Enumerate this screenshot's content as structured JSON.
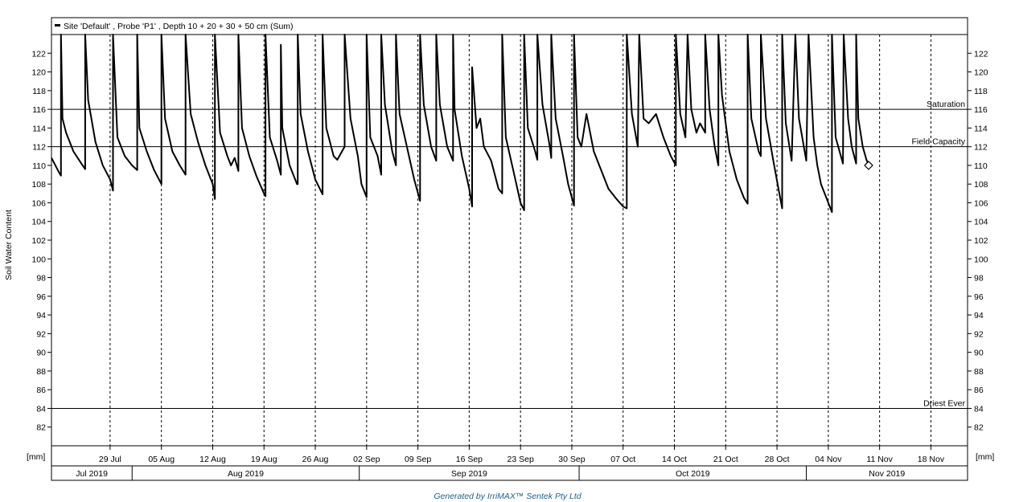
{
  "chart_data": {
    "type": "line",
    "legend": "Site 'Default' , Probe 'P1' , Depth 10 + 20 + 30 + 50 cm (Sum)",
    "ylabel": "Soil Water Content",
    "unit_label": "[mm]",
    "ylim": [
      80,
      124
    ],
    "yticks": [
      82,
      84,
      86,
      88,
      90,
      92,
      94,
      96,
      98,
      100,
      102,
      104,
      106,
      108,
      110,
      112,
      114,
      116,
      118,
      120,
      122
    ],
    "xlim": [
      "2019-07-21",
      "2019-11-23"
    ],
    "date_ticks": [
      {
        "date": "2019-07-29",
        "label": "29 Jul"
      },
      {
        "date": "2019-08-05",
        "label": "05 Aug"
      },
      {
        "date": "2019-08-12",
        "label": "12 Aug"
      },
      {
        "date": "2019-08-19",
        "label": "19 Aug"
      },
      {
        "date": "2019-08-26",
        "label": "26 Aug"
      },
      {
        "date": "2019-09-02",
        "label": "02 Sep"
      },
      {
        "date": "2019-09-09",
        "label": "09 Sep"
      },
      {
        "date": "2019-09-16",
        "label": "16 Sep"
      },
      {
        "date": "2019-09-23",
        "label": "23 Sep"
      },
      {
        "date": "2019-09-30",
        "label": "30 Sep"
      },
      {
        "date": "2019-10-07",
        "label": "07 Oct"
      },
      {
        "date": "2019-10-14",
        "label": "14 Oct"
      },
      {
        "date": "2019-10-21",
        "label": "21 Oct"
      },
      {
        "date": "2019-10-28",
        "label": "28 Oct"
      },
      {
        "date": "2019-11-04",
        "label": "04 Nov"
      },
      {
        "date": "2019-11-11",
        "label": "11 Nov"
      },
      {
        "date": "2019-11-18",
        "label": "18 Nov"
      }
    ],
    "months": [
      {
        "label": "Jul 2019",
        "start": "2019-07-21",
        "end": "2019-08-01"
      },
      {
        "label": "Aug 2019",
        "start": "2019-08-01",
        "end": "2019-09-01"
      },
      {
        "label": "Sep 2019",
        "start": "2019-09-01",
        "end": "2019-10-01"
      },
      {
        "label": "Oct 2019",
        "start": "2019-10-01",
        "end": "2019-11-01"
      },
      {
        "label": "Nov 2019",
        "start": "2019-11-01",
        "end": "2019-11-23"
      }
    ],
    "reference_lines": [
      {
        "label": "Saturation",
        "value": 116
      },
      {
        "label": "Field Capacity",
        "value": 112
      },
      {
        "label": "Driest Ever",
        "value": 84
      }
    ],
    "series": [
      {
        "color": "#000000",
        "points": [
          [
            "2019-07-21",
            110.8
          ],
          [
            "2019-07-22",
            109.3
          ],
          [
            "2019-07-22.3",
            108.9
          ],
          [
            "2019-07-22.3",
            124
          ],
          [
            "2019-07-22.5",
            115.0
          ],
          [
            "2019-07-23",
            113.5
          ],
          [
            "2019-07-24",
            111.5
          ],
          [
            "2019-07-25",
            110.3
          ],
          [
            "2019-07-25.6",
            109.6
          ],
          [
            "2019-07-25.6",
            124
          ],
          [
            "2019-07-26",
            117.0
          ],
          [
            "2019-07-27",
            112.5
          ],
          [
            "2019-07-28",
            110.0
          ],
          [
            "2019-07-29",
            108.5
          ],
          [
            "2019-07-29.4",
            107.3
          ],
          [
            "2019-07-29.4",
            124
          ],
          [
            "2019-07-30",
            113.0
          ],
          [
            "2019-07-31",
            111.0
          ],
          [
            "2019-08-01",
            110.0
          ],
          [
            "2019-08-01.7",
            109.5
          ],
          [
            "2019-08-01.7",
            124
          ],
          [
            "2019-08-02",
            114.0
          ],
          [
            "2019-08-03",
            111.5
          ],
          [
            "2019-08-04",
            109.5
          ],
          [
            "2019-08-05",
            108.0
          ],
          [
            "2019-08-05",
            124
          ],
          [
            "2019-08-05.5",
            115.0
          ],
          [
            "2019-08-06.5",
            111.5
          ],
          [
            "2019-08-07.5",
            110.0
          ],
          [
            "2019-08-08.3",
            109.0
          ],
          [
            "2019-08-08.3",
            124
          ],
          [
            "2019-08-09",
            115.5
          ],
          [
            "2019-08-10",
            112.5
          ],
          [
            "2019-08-11",
            110.0
          ],
          [
            "2019-08-12",
            108.0
          ],
          [
            "2019-08-12.3",
            106.4
          ],
          [
            "2019-08-12.3",
            124
          ],
          [
            "2019-08-13",
            113.5
          ],
          [
            "2019-08-14",
            111.0
          ],
          [
            "2019-08-14.5",
            110.0
          ],
          [
            "2019-08-15",
            110.8
          ],
          [
            "2019-08-15.5",
            109.4
          ],
          [
            "2019-08-15.5",
            124
          ],
          [
            "2019-08-16",
            114.0
          ],
          [
            "2019-08-17",
            111.0
          ],
          [
            "2019-08-18",
            108.8
          ],
          [
            "2019-08-19",
            107.0
          ],
          [
            "2019-08-19.2",
            106.7
          ],
          [
            "2019-08-19.2",
            124
          ],
          [
            "2019-08-19.8",
            113.0
          ],
          [
            "2019-08-20.8",
            110.5
          ],
          [
            "2019-08-21.3",
            109.0
          ],
          [
            "2019-08-21.3",
            122.9
          ],
          [
            "2019-08-21.5",
            114.0
          ],
          [
            "2019-08-22.5",
            110.0
          ],
          [
            "2019-08-23.5",
            108.0
          ],
          [
            "2019-08-23.6",
            108.0
          ],
          [
            "2019-08-23.6",
            124
          ],
          [
            "2019-08-24",
            115.5
          ],
          [
            "2019-08-25",
            111.5
          ],
          [
            "2019-08-26",
            108.5
          ],
          [
            "2019-08-27",
            106.9
          ],
          [
            "2019-08-27",
            124
          ],
          [
            "2019-08-27.5",
            114.0
          ],
          [
            "2019-08-28.5",
            111.0
          ],
          [
            "2019-08-29",
            110.6
          ],
          [
            "2019-08-30",
            112.0
          ],
          [
            "2019-08-30",
            124
          ],
          [
            "2019-08-30.8",
            115.0
          ],
          [
            "2019-08-31.8",
            111.0
          ],
          [
            "2019-09-01.3",
            108.0
          ],
          [
            "2019-09-02",
            106.6
          ],
          [
            "2019-09-02",
            124
          ],
          [
            "2019-09-02.5",
            113.0
          ],
          [
            "2019-09-03.5",
            111.0
          ],
          [
            "2019-09-04",
            109.0
          ],
          [
            "2019-09-04",
            124
          ],
          [
            "2019-09-04.5",
            116.5
          ],
          [
            "2019-09-05.5",
            111.5
          ],
          [
            "2019-09-06",
            110.0
          ],
          [
            "2019-09-06",
            124
          ],
          [
            "2019-09-06.5",
            115.5
          ],
          [
            "2019-09-07.5",
            112.0
          ],
          [
            "2019-09-08.5",
            108.5
          ],
          [
            "2019-09-09.3",
            106.2
          ],
          [
            "2019-09-09.3",
            124
          ],
          [
            "2019-09-09.8",
            116.5
          ],
          [
            "2019-09-10.8",
            112.0
          ],
          [
            "2019-09-11.5",
            110.5
          ],
          [
            "2019-09-11.5",
            124
          ],
          [
            "2019-09-12",
            116.5
          ],
          [
            "2019-09-13",
            112.0
          ],
          [
            "2019-09-13.8",
            110.5
          ],
          [
            "2019-09-13.8",
            124
          ],
          [
            "2019-09-14",
            116.0
          ],
          [
            "2019-09-15",
            111.0
          ],
          [
            "2019-09-16",
            107.5
          ],
          [
            "2019-09-16.4",
            105.6
          ],
          [
            "2019-09-16.4",
            120.5
          ],
          [
            "2019-09-17",
            114.0
          ],
          [
            "2019-09-17.5",
            115.0
          ],
          [
            "2019-09-18",
            112.0
          ],
          [
            "2019-09-19",
            110.5
          ],
          [
            "2019-09-20",
            107.5
          ],
          [
            "2019-09-20.5",
            107.0
          ],
          [
            "2019-09-20.5",
            124
          ],
          [
            "2019-09-21",
            113.0
          ],
          [
            "2019-09-22",
            109.5
          ],
          [
            "2019-09-23",
            106.0
          ],
          [
            "2019-09-23.5",
            105.2
          ],
          [
            "2019-09-23.5",
            124
          ],
          [
            "2019-09-24",
            114.0
          ],
          [
            "2019-09-25",
            111.5
          ],
          [
            "2019-09-25.3",
            110.6
          ],
          [
            "2019-09-25.3",
            124
          ],
          [
            "2019-09-26",
            116.5
          ],
          [
            "2019-09-27",
            112.0
          ],
          [
            "2019-09-27.2",
            110.8
          ],
          [
            "2019-09-27.2",
            124
          ],
          [
            "2019-09-27.8",
            115.0
          ],
          [
            "2019-09-28.8",
            111.0
          ],
          [
            "2019-09-29.5",
            108.0
          ],
          [
            "2019-09-30.3",
            105.7
          ],
          [
            "2019-09-30.3",
            124
          ],
          [
            "2019-09-30.8",
            113.0
          ],
          [
            "2019-10-01.3",
            112.0
          ],
          [
            "2019-10-02",
            115.5
          ],
          [
            "2019-10-03",
            111.5
          ],
          [
            "2019-10-04",
            109.5
          ],
          [
            "2019-10-05",
            107.5
          ],
          [
            "2019-10-06",
            106.5
          ],
          [
            "2019-10-07",
            105.6
          ],
          [
            "2019-10-07.5",
            105.4
          ],
          [
            "2019-10-07.5",
            124
          ],
          [
            "2019-10-08.2",
            115.5
          ],
          [
            "2019-10-09",
            112.0
          ],
          [
            "2019-10-09.2",
            124
          ],
          [
            "2019-10-09.8",
            115.0
          ],
          [
            "2019-10-10.5",
            114.5
          ],
          [
            "2019-10-11.5",
            115.5
          ],
          [
            "2019-10-12.5",
            113.0
          ],
          [
            "2019-10-13.5",
            111.0
          ],
          [
            "2019-10-14.2",
            110.0
          ],
          [
            "2019-10-14.2",
            124
          ],
          [
            "2019-10-14.8",
            115.5
          ],
          [
            "2019-10-15.5",
            113.0
          ],
          [
            "2019-10-15.8",
            124
          ],
          [
            "2019-10-16.3",
            116.0
          ],
          [
            "2019-10-17",
            113.5
          ],
          [
            "2019-10-17.5",
            114.5
          ],
          [
            "2019-10-18.2",
            113.5
          ],
          [
            "2019-10-18.2",
            124
          ],
          [
            "2019-10-18.8",
            116.0
          ],
          [
            "2019-10-19.5",
            112.0
          ],
          [
            "2019-10-20",
            110.0
          ],
          [
            "2019-10-20",
            124
          ],
          [
            "2019-10-20.5",
            117.5
          ],
          [
            "2019-10-21.5",
            111.5
          ],
          [
            "2019-10-22.5",
            108.5
          ],
          [
            "2019-10-23.5",
            106.5
          ],
          [
            "2019-10-24",
            105.9
          ],
          [
            "2019-10-24",
            124
          ],
          [
            "2019-10-24.5",
            115.0
          ],
          [
            "2019-10-25.5",
            111.5
          ],
          [
            "2019-10-25.8",
            111.0
          ],
          [
            "2019-10-25.8",
            124
          ],
          [
            "2019-10-26.5",
            115.0
          ],
          [
            "2019-10-27.5",
            110.5
          ],
          [
            "2019-10-28.2",
            107.5
          ],
          [
            "2019-10-28.7",
            105.4
          ],
          [
            "2019-10-28.7",
            124
          ],
          [
            "2019-10-29.2",
            114.5
          ],
          [
            "2019-10-30",
            110.5
          ],
          [
            "2019-10-30.5",
            124
          ],
          [
            "2019-10-31",
            115.0
          ],
          [
            "2019-11-01",
            110.5
          ],
          [
            "2019-11-01.3",
            124
          ],
          [
            "2019-11-02",
            113.0
          ],
          [
            "2019-11-02.5",
            110.0
          ],
          [
            "2019-11-03",
            108.0
          ],
          [
            "2019-11-04",
            106.0
          ],
          [
            "2019-11-04.5",
            105.0
          ],
          [
            "2019-11-04.5",
            124
          ],
          [
            "2019-11-05",
            113.0
          ],
          [
            "2019-11-06",
            110.2
          ],
          [
            "2019-11-06.1",
            124
          ],
          [
            "2019-11-06.7",
            115.0
          ],
          [
            "2019-11-07.2",
            112.0
          ],
          [
            "2019-11-07.8",
            110.2
          ],
          [
            "2019-11-07.8",
            124
          ],
          [
            "2019-11-08.1",
            115.0
          ],
          [
            "2019-11-08.7",
            112.0
          ],
          [
            "2019-11-09.2",
            110.6
          ],
          [
            "2019-11-09.5",
            110.0
          ]
        ],
        "last_point": [
          "2019-11-09.5",
          110.0
        ]
      }
    ]
  },
  "footer_text": "Generated by IrriMAX™ Sentek Pty Ltd"
}
